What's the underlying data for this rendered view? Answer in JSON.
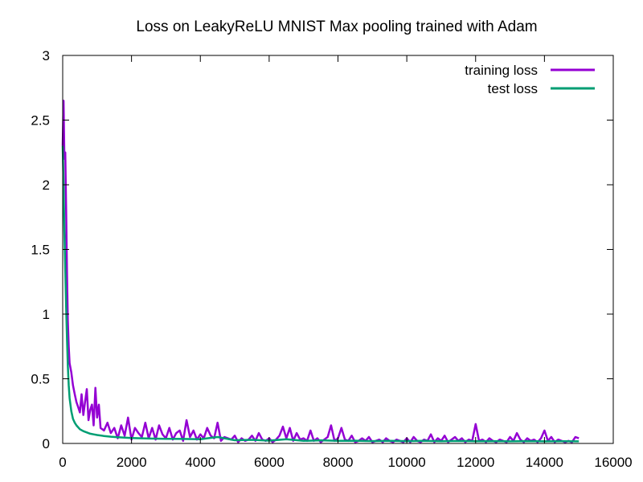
{
  "chart_data": {
    "type": "line",
    "title": "Loss on LeakyReLU MNIST Max pooling trained with Adam",
    "xlabel": "",
    "ylabel": "",
    "xlim": [
      0,
      16000
    ],
    "ylim": [
      0,
      3
    ],
    "x_ticks": [
      "0",
      "2000",
      "4000",
      "6000",
      "8000",
      "10000",
      "12000",
      "14000",
      "16000"
    ],
    "y_ticks": [
      "0",
      "0.5",
      "1",
      "1.5",
      "2",
      "2.5",
      "3"
    ],
    "legend_position": "top-right",
    "grid": false,
    "series": [
      {
        "name": "training loss",
        "color": "#9400d3",
        "x": [
          0,
          25,
          50,
          75,
          100,
          125,
          150,
          175,
          200,
          250,
          300,
          350,
          400,
          450,
          500,
          550,
          600,
          650,
          700,
          750,
          800,
          850,
          900,
          950,
          1000,
          1050,
          1100,
          1200,
          1300,
          1400,
          1500,
          1600,
          1700,
          1800,
          1900,
          2000,
          2100,
          2200,
          2300,
          2400,
          2500,
          2600,
          2700,
          2800,
          2900,
          3000,
          3100,
          3200,
          3300,
          3400,
          3500,
          3600,
          3700,
          3800,
          3900,
          4000,
          4100,
          4200,
          4300,
          4400,
          4500,
          4600,
          4700,
          4800,
          4900,
          5000,
          5100,
          5200,
          5300,
          5400,
          5500,
          5600,
          5700,
          5800,
          5900,
          6000,
          6100,
          6200,
          6300,
          6400,
          6500,
          6600,
          6700,
          6800,
          6900,
          7000,
          7100,
          7200,
          7300,
          7400,
          7500,
          7600,
          7700,
          7800,
          7900,
          8000,
          8100,
          8200,
          8300,
          8400,
          8500,
          8600,
          8700,
          8800,
          8900,
          9000,
          9100,
          9200,
          9300,
          9400,
          9500,
          9600,
          9700,
          9800,
          9900,
          10000,
          10100,
          10200,
          10300,
          10400,
          10500,
          10600,
          10700,
          10800,
          10900,
          11000,
          11100,
          11200,
          11300,
          11400,
          11500,
          11600,
          11700,
          11800,
          11900,
          12000,
          12100,
          12200,
          12300,
          12400,
          12500,
          12600,
          12700,
          12800,
          12900,
          13000,
          13100,
          13200,
          13300,
          13400,
          13500,
          13600,
          13700,
          13800,
          13900,
          14000,
          14100,
          14200,
          14300,
          14400,
          14500,
          14600,
          14700,
          14800,
          14900,
          15000
        ],
        "y": [
          2.3,
          2.65,
          2.2,
          2.25,
          1.8,
          1.3,
          0.95,
          0.75,
          0.62,
          0.55,
          0.45,
          0.38,
          0.32,
          0.28,
          0.24,
          0.38,
          0.22,
          0.32,
          0.42,
          0.18,
          0.26,
          0.3,
          0.14,
          0.43,
          0.2,
          0.3,
          0.12,
          0.1,
          0.16,
          0.08,
          0.12,
          0.04,
          0.14,
          0.06,
          0.2,
          0.03,
          0.12,
          0.08,
          0.05,
          0.16,
          0.04,
          0.12,
          0.03,
          0.14,
          0.07,
          0.04,
          0.12,
          0.03,
          0.08,
          0.1,
          0.02,
          0.18,
          0.05,
          0.1,
          0.03,
          0.07,
          0.04,
          0.12,
          0.06,
          0.04,
          0.16,
          0.02,
          0.05,
          0.04,
          0.03,
          0.06,
          0.01,
          0.04,
          0.02,
          0.03,
          0.06,
          0.02,
          0.08,
          0.03,
          0.02,
          0.04,
          0.01,
          0.03,
          0.06,
          0.13,
          0.04,
          0.12,
          0.02,
          0.08,
          0.03,
          0.04,
          0.02,
          0.1,
          0.02,
          0.04,
          0.01,
          0.03,
          0.05,
          0.14,
          0.02,
          0.04,
          0.12,
          0.03,
          0.02,
          0.06,
          0.01,
          0.02,
          0.04,
          0.02,
          0.05,
          0.01,
          0.02,
          0.03,
          0.01,
          0.04,
          0.02,
          0.01,
          0.03,
          0.02,
          0.01,
          0.04,
          0.01,
          0.05,
          0.02,
          0.01,
          0.03,
          0.02,
          0.07,
          0.01,
          0.04,
          0.02,
          0.06,
          0.01,
          0.03,
          0.05,
          0.02,
          0.04,
          0.01,
          0.03,
          0.02,
          0.15,
          0.02,
          0.03,
          0.01,
          0.04,
          0.02,
          0.01,
          0.03,
          0.02,
          0.01,
          0.05,
          0.02,
          0.08,
          0.03,
          0.01,
          0.04,
          0.02,
          0.03,
          0.01,
          0.04,
          0.1,
          0.02,
          0.05,
          0.01,
          0.03,
          0.02,
          0.01,
          0.02,
          0.01,
          0.05,
          0.04
        ]
      },
      {
        "name": "test loss",
        "color": "#009e73",
        "x": [
          0,
          25,
          50,
          75,
          100,
          125,
          150,
          175,
          200,
          250,
          300,
          350,
          400,
          500,
          600,
          700,
          800,
          900,
          1000,
          1200,
          1400,
          1600,
          1800,
          2000,
          2500,
          3000,
          3500,
          4000,
          4500,
          5000,
          5500,
          6000,
          6500,
          7000,
          7500,
          8000,
          8500,
          9000,
          9500,
          10000,
          10500,
          11000,
          11500,
          12000,
          12500,
          13000,
          13500,
          14000,
          14500,
          15000
        ],
        "y": [
          2.3,
          2.0,
          1.65,
          1.35,
          1.05,
          0.8,
          0.6,
          0.45,
          0.35,
          0.25,
          0.19,
          0.16,
          0.14,
          0.11,
          0.095,
          0.085,
          0.075,
          0.07,
          0.065,
          0.058,
          0.052,
          0.048,
          0.045,
          0.042,
          0.038,
          0.036,
          0.035,
          0.033,
          0.05,
          0.025,
          0.028,
          0.022,
          0.032,
          0.02,
          0.024,
          0.02,
          0.021,
          0.018,
          0.02,
          0.018,
          0.02,
          0.017,
          0.019,
          0.017,
          0.018,
          0.016,
          0.018,
          0.016,
          0.017,
          0.016
        ]
      }
    ]
  }
}
